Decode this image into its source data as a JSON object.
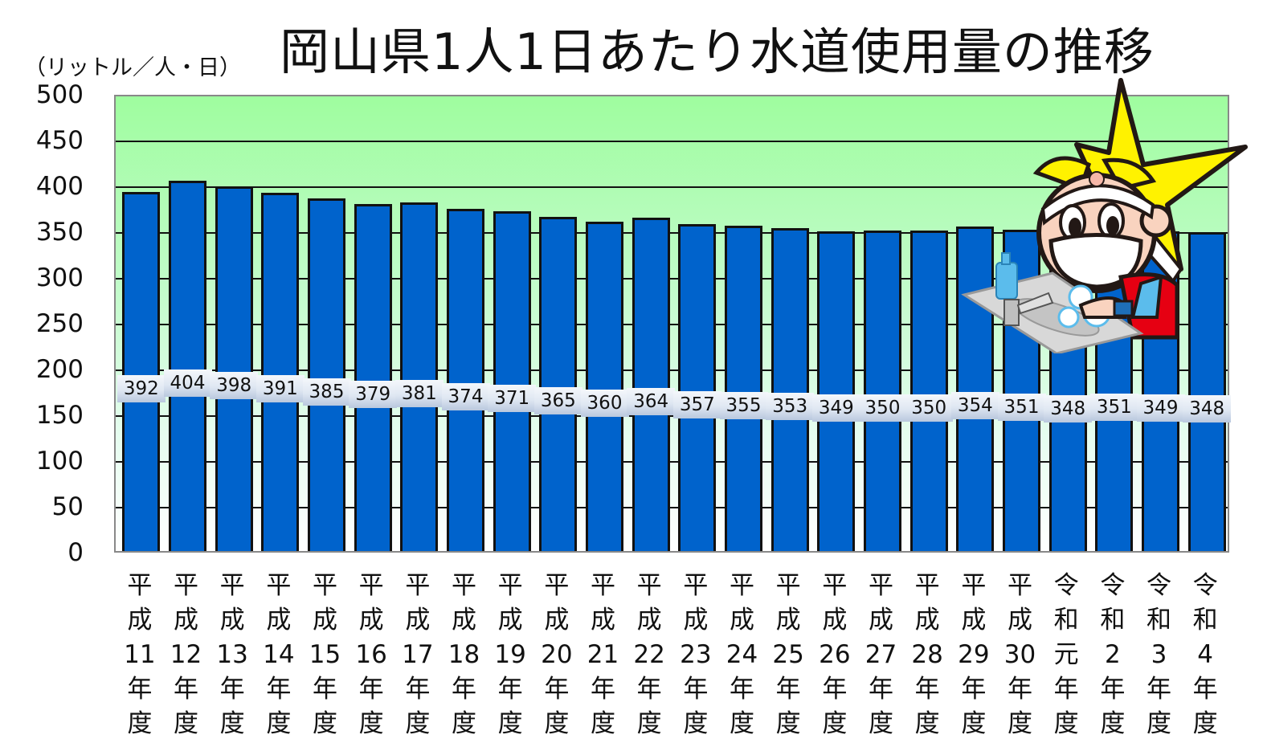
{
  "chart_data": {
    "type": "bar",
    "title": "岡山県1人1日あたり水道使用量の推移",
    "ylabel": "（リットル／人・日）",
    "xlabel": "",
    "ylim": [
      0,
      500
    ],
    "yticks": [
      0,
      50,
      100,
      150,
      200,
      250,
      300,
      350,
      400,
      450,
      500
    ],
    "grid": true,
    "legend": null,
    "categories": [
      "平成11年度",
      "平成12年度",
      "平成13年度",
      "平成14年度",
      "平成15年度",
      "平成16年度",
      "平成17年度",
      "平成18年度",
      "平成19年度",
      "平成20年度",
      "平成21年度",
      "平成22年度",
      "平成23年度",
      "平成24年度",
      "平成25年度",
      "平成26年度",
      "平成27年度",
      "平成28年度",
      "平成29年度",
      "平成30年度",
      "令和元年度",
      "令和2年度",
      "令和3年度",
      "令和4年度"
    ],
    "values": [
      392,
      404,
      398,
      391,
      385,
      379,
      381,
      374,
      371,
      365,
      360,
      364,
      357,
      355,
      353,
      349,
      350,
      350,
      354,
      351,
      348,
      351,
      349,
      348
    ],
    "colors": {
      "bar": "#0063cc",
      "plot_bg_top": "#9ffd9f",
      "plot_bg_bottom": "#ffffff"
    }
  },
  "title": "岡山県1人1日あたり水道使用量の推移",
  "unit_label": "（リットル／人・日）",
  "yticks": [
    "500",
    "450",
    "400",
    "350",
    "300",
    "250",
    "200",
    "150",
    "100",
    "50",
    "0"
  ],
  "xlabels": [
    [
      "平",
      "成",
      "11",
      "年",
      "度"
    ],
    [
      "平",
      "成",
      "12",
      "年",
      "度"
    ],
    [
      "平",
      "成",
      "13",
      "年",
      "度"
    ],
    [
      "平",
      "成",
      "14",
      "年",
      "度"
    ],
    [
      "平",
      "成",
      "15",
      "年",
      "度"
    ],
    [
      "平",
      "成",
      "16",
      "年",
      "度"
    ],
    [
      "平",
      "成",
      "17",
      "年",
      "度"
    ],
    [
      "平",
      "成",
      "18",
      "年",
      "度"
    ],
    [
      "平",
      "成",
      "19",
      "年",
      "度"
    ],
    [
      "平",
      "成",
      "20",
      "年",
      "度"
    ],
    [
      "平",
      "成",
      "21",
      "年",
      "度"
    ],
    [
      "平",
      "成",
      "22",
      "年",
      "度"
    ],
    [
      "平",
      "成",
      "23",
      "年",
      "度"
    ],
    [
      "平",
      "成",
      "24",
      "年",
      "度"
    ],
    [
      "平",
      "成",
      "25",
      "年",
      "度"
    ],
    [
      "平",
      "成",
      "26",
      "年",
      "度"
    ],
    [
      "平",
      "成",
      "27",
      "年",
      "度"
    ],
    [
      "平",
      "成",
      "28",
      "年",
      "度"
    ],
    [
      "平",
      "成",
      "29",
      "年",
      "度"
    ],
    [
      "平",
      "成",
      "30",
      "年",
      "度"
    ],
    [
      "令",
      "和",
      "元",
      "年",
      "度"
    ],
    [
      "令",
      "和",
      "2",
      "年",
      "度"
    ],
    [
      "令",
      "和",
      "3",
      "年",
      "度"
    ],
    [
      "令",
      "和",
      "4",
      "年",
      "度"
    ]
  ],
  "mascot": {
    "description": "mascot-washing-hands-with-star"
  }
}
